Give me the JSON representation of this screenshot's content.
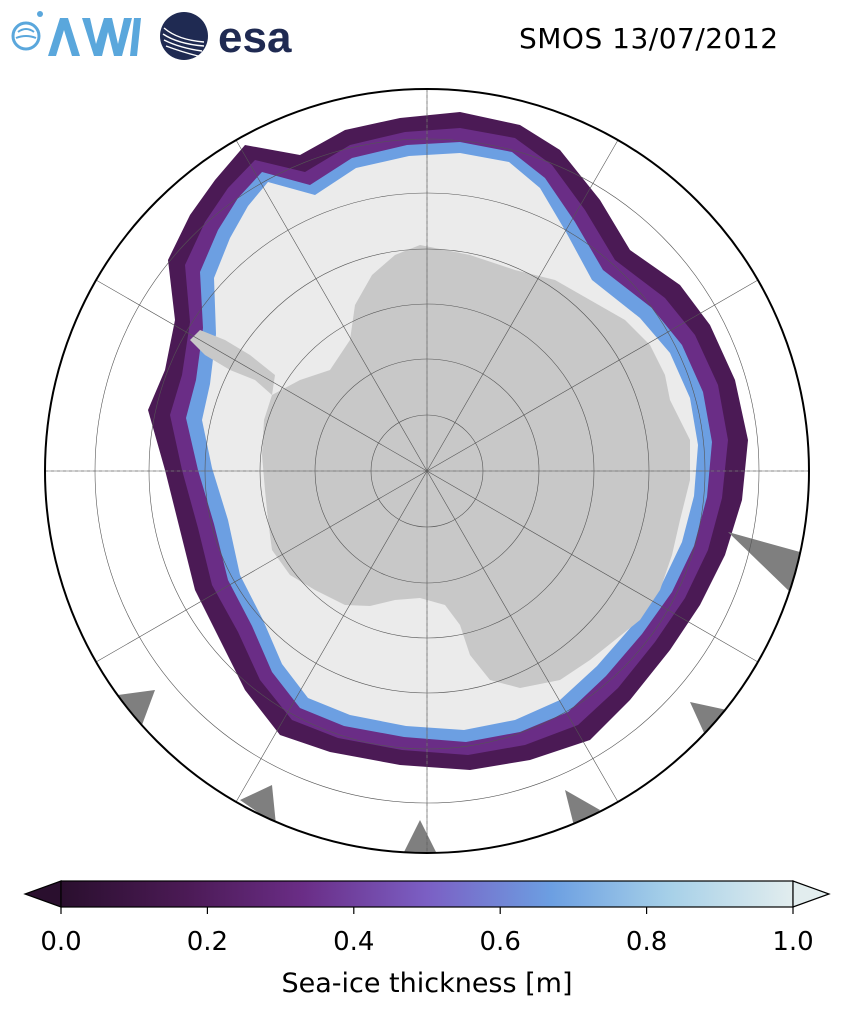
{
  "header": {
    "title": "SMOS 13/07/2012",
    "logos": [
      {
        "text": "AWI",
        "icon": "awi-logo-icon",
        "color": "#5aa7dc"
      },
      {
        "text": "esa",
        "icon": "esa-logo-icon",
        "color": "#1f2a52"
      }
    ]
  },
  "map": {
    "projection": "south-polar-stereographic",
    "ocean_color": "#ffffff",
    "land_color": "#c8c8c8",
    "ice_shelf_color": "#ebebeb",
    "no_data_color": "#7f7f7f",
    "grid": true
  },
  "colorbar": {
    "label": "Sea-ice thickness [m]",
    "min": 0.0,
    "max": 1.0,
    "ticks": [
      "0.0",
      "0.2",
      "0.4",
      "0.6",
      "0.8",
      "1.0"
    ],
    "tick_values": [
      0.0,
      0.2,
      0.4,
      0.6,
      0.8,
      1.0
    ],
    "extend": "both",
    "colors": [
      "#2a0f2e",
      "#4b1a55",
      "#6a2d86",
      "#7b5fc4",
      "#6c9fe2",
      "#a6d0e8",
      "#e2edee"
    ]
  }
}
